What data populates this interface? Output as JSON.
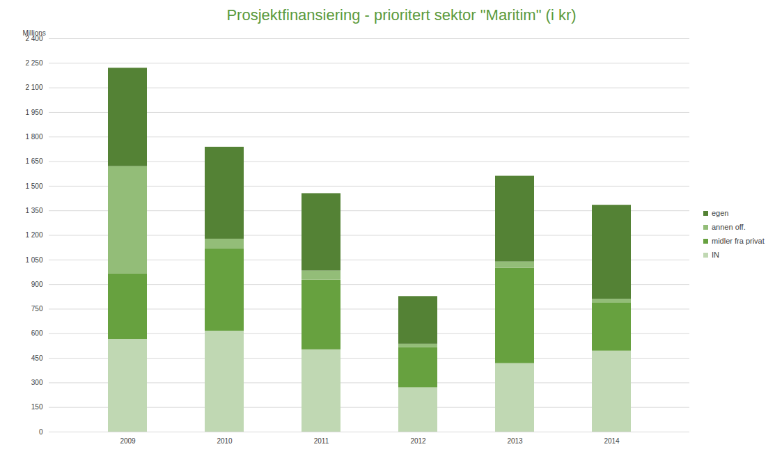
{
  "chart_data": {
    "type": "bar",
    "stacked": true,
    "title": "Prosjektfinansiering - prioritert sektor \"Maritim\" (i kr)",
    "y_label": "Millions",
    "categories": [
      "2009",
      "2010",
      "2011",
      "2012",
      "2013",
      "2014"
    ],
    "series": [
      {
        "name": "IN",
        "color": "#c0d8b3",
        "values": [
          565,
          616,
          502,
          270,
          418,
          494
        ]
      },
      {
        "name": "midler fra privat",
        "color": "#67a13f",
        "values": [
          400,
          502,
          426,
          245,
          582,
          295
        ]
      },
      {
        "name": "annen off.",
        "color": "#93bd78",
        "values": [
          655,
          59,
          55,
          21,
          38,
          21
        ]
      },
      {
        "name": "egen",
        "color": "#548235",
        "values": [
          600,
          561,
          472,
          291,
          523,
          574
        ]
      }
    ],
    "ylim": [
      0,
      2400
    ],
    "yticks": [
      0,
      150,
      300,
      450,
      600,
      750,
      900,
      {
        "value": 1050,
        "label": "1 050"
      },
      {
        "value": 1200,
        "label": "1 200"
      },
      {
        "value": 1350,
        "label": "1 350"
      },
      {
        "value": 1500,
        "label": "1 500"
      },
      {
        "value": 1650,
        "label": "1 650"
      },
      {
        "value": 1800,
        "label": "1 800"
      },
      {
        "value": 1950,
        "label": "1 950"
      },
      {
        "value": 2100,
        "label": "2 100"
      },
      {
        "value": 2250,
        "label": "2 250"
      },
      {
        "value": 2400,
        "label": "2 400"
      }
    ],
    "grid": true,
    "legend": "right"
  }
}
